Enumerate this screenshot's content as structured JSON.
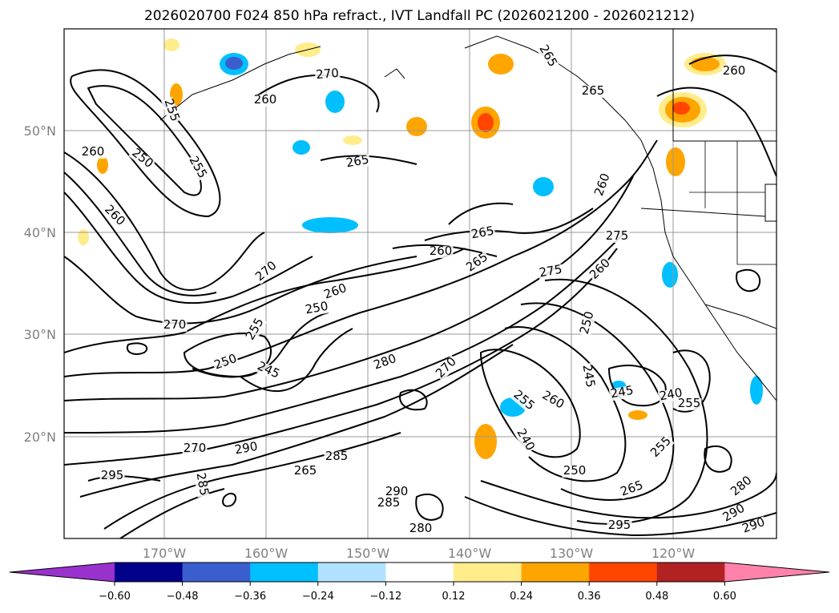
{
  "title": "2026020700 F024 850 hPa refract., IVT Landfall PC (2026021200 - 2026021212)",
  "lat_labels": [
    "50°N",
    "40°N",
    "30°N",
    "20°N"
  ],
  "lon_labels": [
    "170°W",
    "160°W",
    "150°W",
    "140°W",
    "130°W",
    "120°W"
  ],
  "contour_labels": [
    "260",
    "250",
    "255",
    "260",
    "265",
    "270",
    "260",
    "255",
    "265",
    "270",
    "250",
    "260",
    "270",
    "255",
    "250",
    "245",
    "280",
    "270",
    "265",
    "260",
    "275",
    "260",
    "250",
    "245",
    "240",
    "255",
    "260",
    "250",
    "245",
    "240",
    "255",
    "270",
    "290",
    "285",
    "265",
    "290",
    "285",
    "280",
    "295",
    "285",
    "255",
    "265",
    "280",
    "290",
    "295",
    "290",
    "260",
    "265",
    "265",
    "275",
    "260"
  ],
  "colorbar": {
    "ticks": [
      "−0.60",
      "−0.48",
      "−0.36",
      "−0.24",
      "−0.12",
      "0.12",
      "0.24",
      "0.36",
      "0.48",
      "0.60"
    ],
    "colors": [
      "#9932cc",
      "#00008b",
      "#3a5fcd",
      "#00bfff",
      "#b0e2ff",
      "#ffffff",
      "#ffec8b",
      "#ffa500",
      "#ff4500",
      "#b22222",
      "#ff82ab"
    ]
  }
}
